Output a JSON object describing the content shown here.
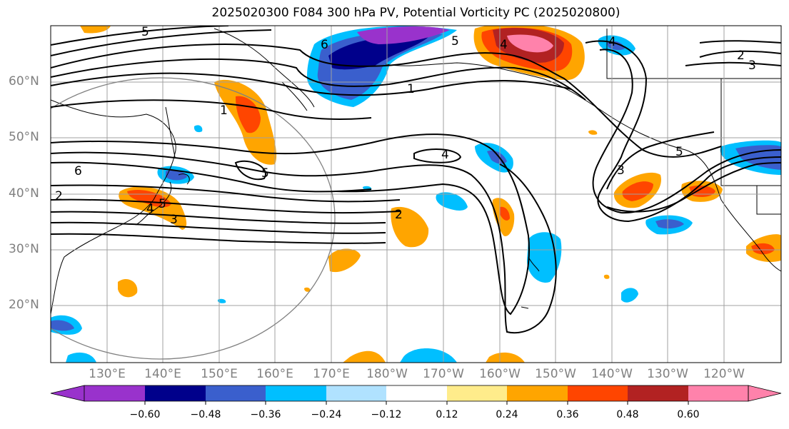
{
  "title": "2025020300 F084 300 hPa PV, Potential Vorticity PC (2025020800)",
  "lat_labels": [
    "60°N",
    "50°N",
    "40°N",
    "30°N",
    "20°N"
  ],
  "lon_labels": [
    "130°E",
    "140°E",
    "150°E",
    "160°E",
    "170°E",
    "180°W",
    "170°W",
    "160°W",
    "150°W",
    "140°W",
    "130°W",
    "120°W"
  ],
  "colorbar": {
    "ticks": [
      "−0.60",
      "−0.48",
      "−0.36",
      "−0.24",
      "−0.12",
      "0.12",
      "0.24",
      "0.36",
      "0.48",
      "0.60"
    ],
    "colors": [
      "#9932cc",
      "#00008b",
      "#3a5fcd",
      "#00bfff",
      "#b0e2ff",
      "#ffffff",
      "#ffec8b",
      "#ffa500",
      "#ff4500",
      "#b22222",
      "#ff82ab"
    ]
  },
  "contour_labels": [
    "5",
    "6",
    "5",
    "4",
    "2",
    "3",
    "1",
    "1",
    "5",
    "4",
    "3",
    "5",
    "6",
    "4",
    "2",
    "4",
    "5",
    "3",
    "2"
  ],
  "colors": {
    "land": "#000000",
    "grid": "#a0a0a0",
    "contour": "#000000",
    "circle": "#808080",
    "label": "#808080"
  }
}
